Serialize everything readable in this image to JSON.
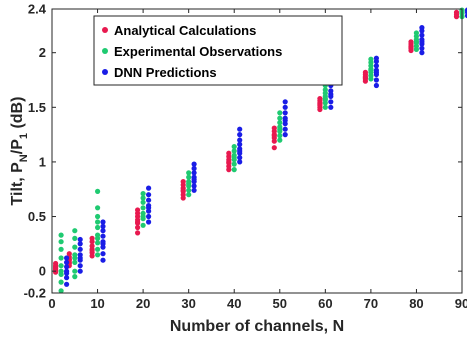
{
  "chart_data": {
    "type": "scatter",
    "xlabel": "Number of channels, N",
    "ylabel_parts": [
      "Tilt, P",
      "N",
      "/P",
      "1",
      " (dB)"
    ],
    "xlim": [
      0,
      90
    ],
    "ylim": [
      -0.2,
      2.4
    ],
    "x_ticks": [
      0,
      10,
      20,
      30,
      40,
      50,
      60,
      70,
      80,
      90
    ],
    "y_ticks": [
      -0.2,
      0,
      0.5,
      1,
      1.5,
      2,
      2.4
    ],
    "y_tick_labels": [
      "-0.2",
      "0",
      "0.5",
      "1",
      "1.5",
      "2",
      "2.4"
    ],
    "grid": false,
    "legend_position": "top-left",
    "series": [
      {
        "name": "Analytical Calculations",
        "color": "#e8194f",
        "x_offset": -1.2,
        "points": [
          {
            "N": 2,
            "values": [
              -0.01,
              0.01,
              0.03,
              0.05,
              0.07,
              0.04,
              0.02
            ]
          },
          {
            "N": 5,
            "values": [
              0.05,
              0.08,
              0.1,
              0.13,
              0.16,
              0.11,
              0.07
            ]
          },
          {
            "N": 10,
            "values": [
              0.14,
              0.17,
              0.2,
              0.23,
              0.27,
              0.3,
              0.19
            ]
          },
          {
            "N": 20,
            "values": [
              0.35,
              0.4,
              0.44,
              0.47,
              0.5,
              0.53,
              0.56,
              0.45
            ]
          },
          {
            "N": 30,
            "values": [
              0.67,
              0.7,
              0.73,
              0.76,
              0.79,
              0.82,
              0.74
            ]
          },
          {
            "N": 40,
            "values": [
              0.93,
              0.96,
              0.99,
              1.02,
              1.05,
              1.08,
              1.0
            ]
          },
          {
            "N": 50,
            "values": [
              1.13,
              1.19,
              1.22,
              1.25,
              1.28,
              1.31,
              1.24
            ]
          },
          {
            "N": 60,
            "values": [
              1.48,
              1.5,
              1.52,
              1.54,
              1.56,
              1.58,
              1.53
            ]
          },
          {
            "N": 70,
            "values": [
              1.74,
              1.76,
              1.78,
              1.8,
              1.82,
              1.77
            ]
          },
          {
            "N": 80,
            "values": [
              2.02,
              2.04,
              2.06,
              2.08,
              2.1,
              2.05
            ]
          },
          {
            "N": 90,
            "values": [
              2.33,
              2.35,
              2.37
            ]
          }
        ]
      },
      {
        "name": "Experimental Observations",
        "color": "#1fca71",
        "x_offset": 0,
        "points": [
          {
            "N": 2,
            "values": [
              -0.18,
              -0.1,
              -0.03,
              0.05,
              0.12,
              0.2,
              0.27,
              0.33,
              0.0
            ]
          },
          {
            "N": 5,
            "values": [
              -0.05,
              0.0,
              0.08,
              0.15,
              0.22,
              0.3,
              0.37,
              0.12
            ]
          },
          {
            "N": 10,
            "values": [
              0.15,
              0.2,
              0.26,
              0.33,
              0.4,
              0.45,
              0.5,
              0.58,
              0.73,
              0.3
            ]
          },
          {
            "N": 20,
            "values": [
              0.42,
              0.48,
              0.53,
              0.58,
              0.63,
              0.67,
              0.71,
              0.5
            ]
          },
          {
            "N": 30,
            "values": [
              0.7,
              0.74,
              0.78,
              0.82,
              0.86,
              0.9,
              0.8
            ]
          },
          {
            "N": 40,
            "values": [
              0.93,
              0.98,
              1.02,
              1.06,
              1.1,
              1.14,
              1.04
            ]
          },
          {
            "N": 50,
            "values": [
              1.2,
              1.24,
              1.28,
              1.32,
              1.36,
              1.4,
              1.45,
              1.3
            ]
          },
          {
            "N": 60,
            "values": [
              1.5,
              1.54,
              1.57,
              1.6,
              1.63,
              1.66,
              1.7,
              1.58
            ]
          },
          {
            "N": 70,
            "values": [
              1.76,
              1.79,
              1.82,
              1.85,
              1.88,
              1.91,
              1.94,
              1.84
            ]
          },
          {
            "N": 80,
            "values": [
              2.03,
              2.06,
              2.09,
              2.12,
              2.15,
              2.18,
              2.1
            ]
          },
          {
            "N": 90,
            "values": [
              2.33,
              2.36,
              2.38,
              2.39
            ]
          }
        ]
      },
      {
        "name": "DNN Predictions",
        "color": "#1a1de6",
        "x_offset": 1.2,
        "points": [
          {
            "N": 2,
            "values": [
              -0.12,
              -0.06,
              0.0,
              0.04,
              0.08,
              0.12,
              -0.02
            ]
          },
          {
            "N": 5,
            "values": [
              0.0,
              0.05,
              0.1,
              0.15,
              0.2,
              0.25,
              0.29,
              0.12
            ]
          },
          {
            "N": 10,
            "values": [
              0.1,
              0.16,
              0.22,
              0.27,
              0.32,
              0.37,
              0.41,
              0.45,
              0.25
            ]
          },
          {
            "N": 20,
            "values": [
              0.45,
              0.5,
              0.55,
              0.6,
              0.65,
              0.7,
              0.76,
              0.58
            ]
          },
          {
            "N": 30,
            "values": [
              0.74,
              0.78,
              0.82,
              0.86,
              0.9,
              0.94,
              0.98,
              0.84
            ]
          },
          {
            "N": 40,
            "values": [
              1.0,
              1.04,
              1.08,
              1.12,
              1.16,
              1.2,
              1.25,
              1.3,
              1.1
            ]
          },
          {
            "N": 50,
            "values": [
              1.25,
              1.3,
              1.35,
              1.4,
              1.45,
              1.5,
              1.55,
              1.38
            ]
          },
          {
            "N": 60,
            "values": [
              1.5,
              1.55,
              1.6,
              1.65,
              1.7,
              1.75,
              1.81,
              1.62
            ]
          },
          {
            "N": 70,
            "values": [
              1.7,
              1.75,
              1.8,
              1.84,
              1.88,
              1.92,
              1.95,
              1.82
            ]
          },
          {
            "N": 80,
            "values": [
              2.0,
              2.04,
              2.08,
              2.12,
              2.16,
              2.2,
              2.23,
              2.1
            ]
          },
          {
            "N": 90,
            "values": [
              2.34,
              2.37,
              2.39
            ]
          }
        ]
      }
    ]
  }
}
